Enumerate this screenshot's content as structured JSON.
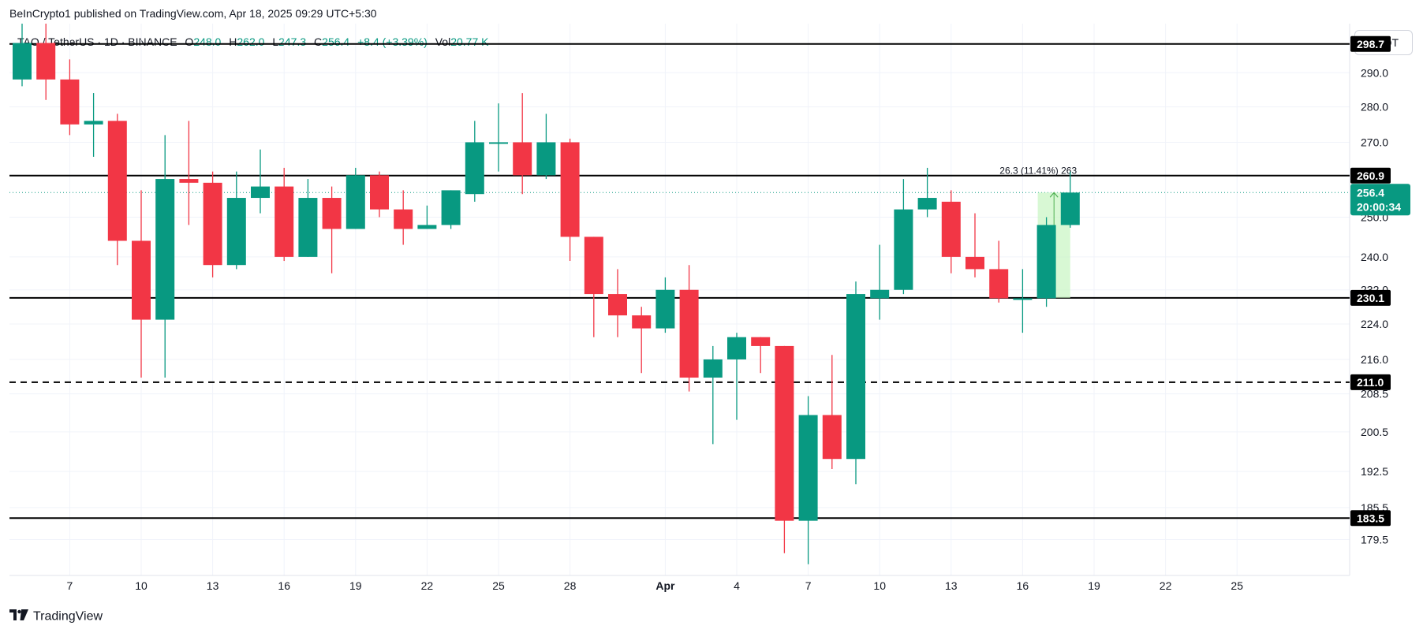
{
  "header": {
    "publisher": "BeInCrypto1 published on TradingView.com, Apr 18, 2025 09:29 UTC+5:30",
    "symbol": "TAO / TetherUS · 1D · BINANCE",
    "o_label": "O",
    "o_value": "248.0",
    "h_label": "H",
    "h_value": "262.0",
    "l_label": "L",
    "l_value": "247.3",
    "c_label": "C",
    "c_value": "256.4",
    "change": "+8.4 (+3.39%)",
    "vol_label": "Vol",
    "vol_value": "20.77 K",
    "currency": "USDT"
  },
  "footer": {
    "brand": "TradingView",
    "logo_icon": "tradingview-logo-icon"
  },
  "colors": {
    "up": "#089981",
    "down": "#f23645",
    "grid": "#f0f3fa",
    "line": "#000000",
    "measure_fill": "#c8f5c2"
  },
  "chart_data": {
    "type": "candlestick",
    "y_scale": "log",
    "ylim": [
      173,
      305
    ],
    "y_ticks": [
      "290.0",
      "280.0",
      "270.0",
      "250.0",
      "240.0",
      "232.0",
      "224.0",
      "216.0",
      "208.5",
      "200.5",
      "192.5",
      "185.5",
      "179.5"
    ],
    "x_ticks": [
      {
        "label": "7",
        "day": 7
      },
      {
        "label": "10",
        "day": 10
      },
      {
        "label": "13",
        "day": 13
      },
      {
        "label": "16",
        "day": 16
      },
      {
        "label": "19",
        "day": 19
      },
      {
        "label": "22",
        "day": 22
      },
      {
        "label": "25",
        "day": 25
      },
      {
        "label": "28",
        "day": 28
      },
      {
        "label": "Apr",
        "day": 32
      },
      {
        "label": "4",
        "day": 35
      },
      {
        "label": "7",
        "day": 38
      },
      {
        "label": "10",
        "day": 41
      },
      {
        "label": "13",
        "day": 44
      },
      {
        "label": "16",
        "day": 47
      },
      {
        "label": "19",
        "day": 50
      },
      {
        "label": "22",
        "day": 53
      },
      {
        "label": "25",
        "day": 56
      }
    ],
    "candles": [
      {
        "day": 5,
        "o": 288,
        "h": 305,
        "l": 286,
        "c": 299
      },
      {
        "day": 6,
        "o": 299,
        "h": 305,
        "l": 282,
        "c": 288
      },
      {
        "day": 7,
        "o": 288,
        "h": 294,
        "l": 272,
        "c": 275
      },
      {
        "day": 8,
        "o": 275,
        "h": 284,
        "l": 266,
        "c": 276
      },
      {
        "day": 9,
        "o": 276,
        "h": 278,
        "l": 238,
        "c": 244
      },
      {
        "day": 10,
        "o": 244,
        "h": 257,
        "l": 212,
        "c": 225
      },
      {
        "day": 11,
        "o": 225,
        "h": 272,
        "l": 212,
        "c": 260
      },
      {
        "day": 12,
        "o": 260,
        "h": 276,
        "l": 248,
        "c": 259
      },
      {
        "day": 13,
        "o": 259,
        "h": 262,
        "l": 235,
        "c": 238
      },
      {
        "day": 14,
        "o": 238,
        "h": 262,
        "l": 237,
        "c": 255
      },
      {
        "day": 15,
        "o": 255,
        "h": 268,
        "l": 251,
        "c": 258
      },
      {
        "day": 16,
        "o": 258,
        "h": 263,
        "l": 239,
        "c": 240
      },
      {
        "day": 17,
        "o": 240,
        "h": 260,
        "l": 240,
        "c": 255
      },
      {
        "day": 18,
        "o": 255,
        "h": 258,
        "l": 236,
        "c": 247
      },
      {
        "day": 19,
        "o": 247,
        "h": 263,
        "l": 247,
        "c": 261
      },
      {
        "day": 20,
        "o": 261,
        "h": 262,
        "l": 250,
        "c": 252
      },
      {
        "day": 21,
        "o": 252,
        "h": 257,
        "l": 243,
        "c": 247
      },
      {
        "day": 22,
        "o": 247,
        "h": 253,
        "l": 247,
        "c": 248
      },
      {
        "day": 23,
        "o": 248,
        "h": 257,
        "l": 247,
        "c": 257
      },
      {
        "day": 24,
        "o": 256,
        "h": 276,
        "l": 254,
        "c": 270
      },
      {
        "day": 25,
        "o": 270,
        "h": 281,
        "l": 262,
        "c": 270
      },
      {
        "day": 26,
        "o": 270,
        "h": 284,
        "l": 256,
        "c": 261
      },
      {
        "day": 27,
        "o": 261,
        "h": 278,
        "l": 260,
        "c": 270
      },
      {
        "day": 28,
        "o": 270,
        "h": 271,
        "l": 239,
        "c": 245
      },
      {
        "day": 29,
        "o": 245,
        "h": 245,
        "l": 221,
        "c": 231
      },
      {
        "day": 30,
        "o": 231,
        "h": 237,
        "l": 221,
        "c": 226
      },
      {
        "day": 31,
        "o": 226,
        "h": 228,
        "l": 213,
        "c": 223
      },
      {
        "day": 32,
        "o": 223,
        "h": 235,
        "l": 222,
        "c": 232
      },
      {
        "day": 33,
        "o": 232,
        "h": 238,
        "l": 209,
        "c": 212
      },
      {
        "day": 34,
        "o": 212,
        "h": 219,
        "l": 198,
        "c": 216
      },
      {
        "day": 35,
        "o": 216,
        "h": 222,
        "l": 203,
        "c": 221
      },
      {
        "day": 36,
        "o": 221,
        "h": 221,
        "l": 213,
        "c": 219
      },
      {
        "day": 37,
        "o": 219,
        "h": 219,
        "l": 177,
        "c": 183
      },
      {
        "day": 38,
        "o": 183,
        "h": 208,
        "l": 175,
        "c": 204
      },
      {
        "day": 39,
        "o": 204,
        "h": 217,
        "l": 193,
        "c": 195
      },
      {
        "day": 40,
        "o": 195,
        "h": 234,
        "l": 190,
        "c": 231
      },
      {
        "day": 41,
        "o": 230,
        "h": 243,
        "l": 225,
        "c": 232
      },
      {
        "day": 42,
        "o": 232,
        "h": 260,
        "l": 231,
        "c": 252
      },
      {
        "day": 43,
        "o": 252,
        "h": 263,
        "l": 250,
        "c": 255
      },
      {
        "day": 44,
        "o": 254,
        "h": 257,
        "l": 236,
        "c": 240
      },
      {
        "day": 45,
        "o": 240,
        "h": 251,
        "l": 235,
        "c": 237
      },
      {
        "day": 46,
        "o": 237,
        "h": 244,
        "l": 229,
        "c": 230
      },
      {
        "day": 47,
        "o": 230,
        "h": 237,
        "l": 222,
        "c": 230
      },
      {
        "day": 48,
        "o": 230,
        "h": 250,
        "l": 228,
        "c": 248
      },
      {
        "day": 49,
        "o": 248,
        "h": 262,
        "l": 247.3,
        "c": 256.4
      }
    ],
    "levels": [
      {
        "value": 298.7,
        "label": "298.7",
        "style": "solid"
      },
      {
        "value": 260.9,
        "label": "260.9",
        "style": "solid"
      },
      {
        "value": 230.1,
        "label": "230.1",
        "style": "solid"
      },
      {
        "value": 211.0,
        "label": "211.0",
        "style": "dashed"
      },
      {
        "value": 183.5,
        "label": "183.5",
        "style": "solid"
      }
    ],
    "last_price": {
      "value": 256.4,
      "label": "256.4",
      "countdown": "20:00:34"
    },
    "measure": {
      "from_day": 48,
      "to_day": 49,
      "low": 230.1,
      "high": 256.4,
      "label": "26.3 (11.41%) 263"
    }
  }
}
